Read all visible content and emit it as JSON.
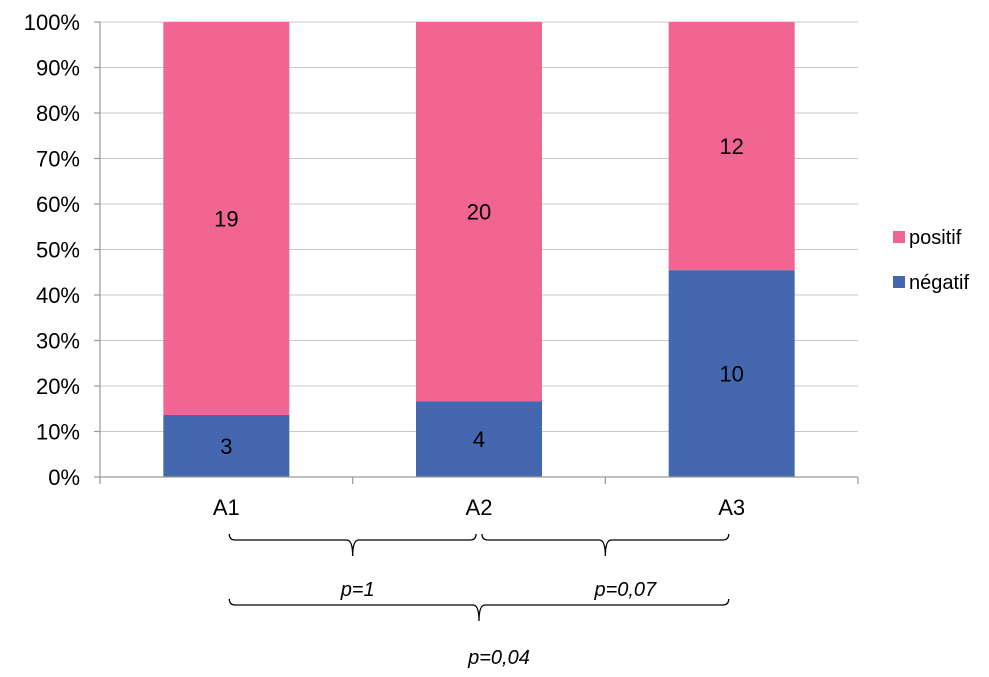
{
  "chart_data": {
    "type": "bar",
    "stacked": true,
    "normalized_percent": true,
    "categories": [
      "A1",
      "A2",
      "A3"
    ],
    "series": [
      {
        "name": "négatif",
        "color": "#4467B0",
        "values": [
          3,
          4,
          10
        ]
      },
      {
        "name": "positif",
        "color": "#F06592",
        "values": [
          19,
          20,
          12
        ]
      }
    ],
    "y_tick_labels": [
      "0%",
      "10%",
      "20%",
      "30%",
      "40%",
      "50%",
      "60%",
      "70%",
      "80%",
      "90%",
      "100%"
    ],
    "ylim": [
      0,
      100
    ],
    "grid": true,
    "legend_position": "right",
    "legend_order": [
      "positif",
      "négatif"
    ],
    "annotations": [
      {
        "from": "A1",
        "to": "A2",
        "level": 1,
        "text": "p=1"
      },
      {
        "from": "A2",
        "to": "A3",
        "level": 1,
        "text": "p=0,07"
      },
      {
        "from": "A1",
        "to": "A3",
        "level": 2,
        "text": "p=0,04"
      }
    ]
  }
}
